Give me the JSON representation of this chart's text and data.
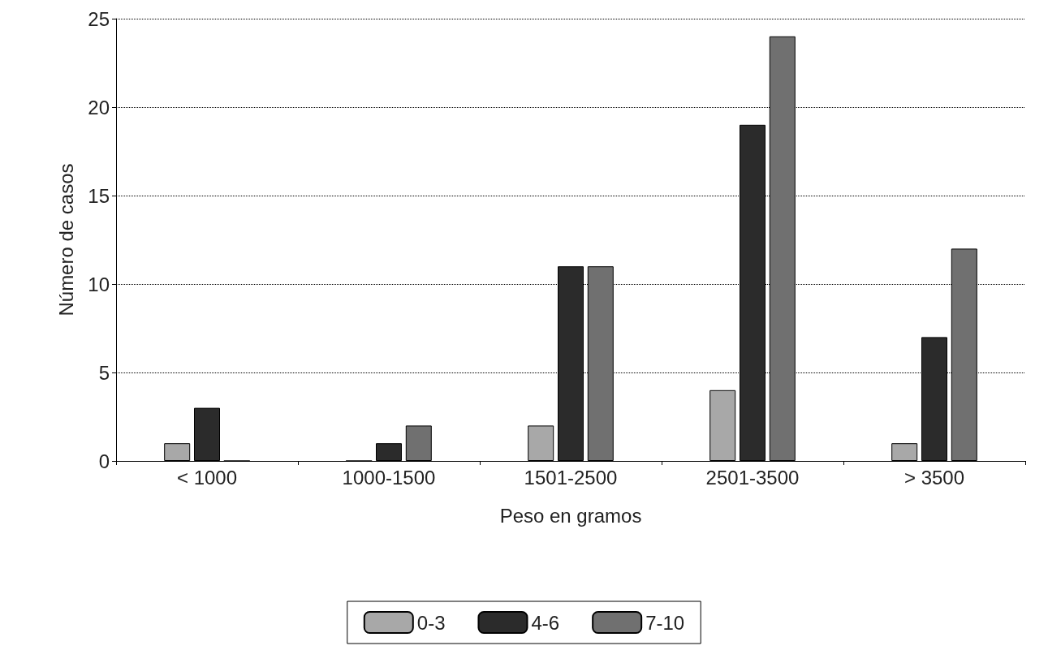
{
  "chart_data": {
    "type": "bar",
    "xlabel": "Peso en gramos",
    "ylabel": "Número de casos",
    "categories": [
      "< 1000",
      "1000-1500",
      "1501-2500",
      "2501-3500",
      "> 3500"
    ],
    "series": [
      {
        "name": "0-3",
        "color": "#a8a8a8",
        "values": [
          1,
          0,
          2,
          4,
          1
        ]
      },
      {
        "name": "4-6",
        "color": "#2b2b2b",
        "values": [
          3,
          1,
          11,
          19,
          7
        ]
      },
      {
        "name": "7-10",
        "color": "#707070",
        "values": [
          0,
          2,
          11,
          24,
          12
        ]
      }
    ],
    "ylim": [
      0,
      25
    ],
    "yticks": [
      0,
      5,
      10,
      15,
      20,
      25
    ],
    "grid": "y",
    "legend": "bottom"
  }
}
